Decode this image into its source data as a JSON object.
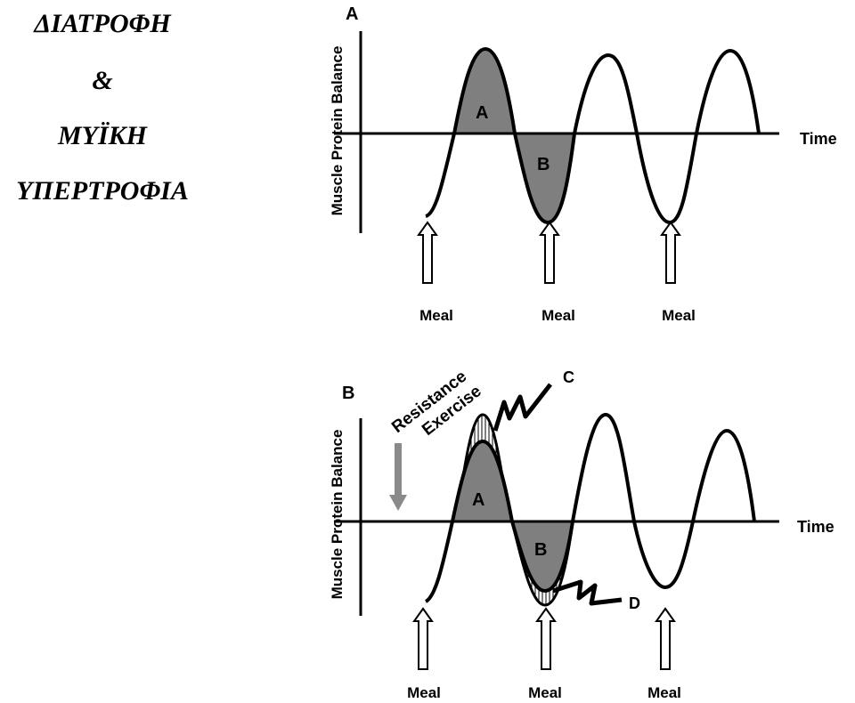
{
  "title_lines": [
    "ΔΙΑΤΡΟΦΗ",
    "&",
    "ΜΥΪΚΗ",
    "ΥΠΕΡΤΡΟΦΙΑ"
  ],
  "panel_a": {
    "panel_letter": "A",
    "y_axis_label": "Muscle Protein Balance",
    "x_axis_label": "Time",
    "area_labels": [
      "A",
      "B"
    ],
    "meal_labels": [
      "Meal",
      "Meal",
      "Meal"
    ]
  },
  "panel_b": {
    "panel_letter": "B",
    "y_axis_label": "Muscle Protein Balance",
    "x_axis_label": "Time",
    "exercise_label_line1": "Resistance",
    "exercise_label_line2": "Exercise",
    "area_labels": [
      "A",
      "B"
    ],
    "annotation_labels": [
      "C",
      "D"
    ],
    "meal_labels": [
      "Meal",
      "Meal",
      "Meal"
    ]
  },
  "colors": {
    "shade": "#7f7f7f",
    "ink": "#000000",
    "arrow_fill": "#ffffff"
  },
  "icons": [
    "meal-arrow-icon",
    "resistance-exercise-arrow-icon",
    "zigzag-pointer-icon"
  ]
}
